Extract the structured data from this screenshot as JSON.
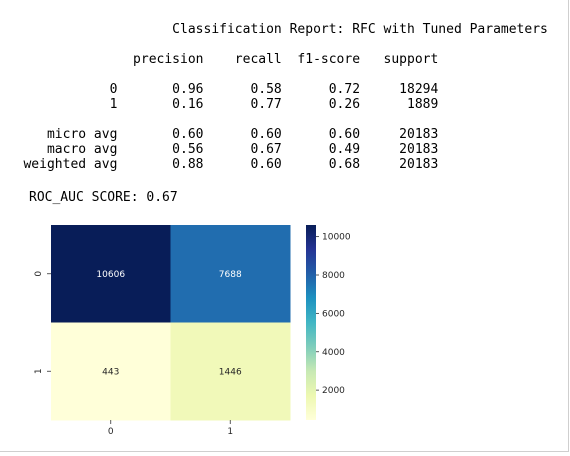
{
  "report": {
    "title": "Classification Report: RFC with Tuned Parameters",
    "header": [
      "precision",
      "recall",
      "f1-score",
      "support"
    ],
    "class_rows": [
      {
        "label": "0",
        "values": [
          "0.96",
          "0.58",
          "0.72",
          "18294"
        ]
      },
      {
        "label": "1",
        "values": [
          "0.16",
          "0.77",
          "0.26",
          "1889"
        ]
      }
    ],
    "avg_rows": [
      {
        "label": "micro avg",
        "values": [
          "0.60",
          "0.60",
          "0.60",
          "20183"
        ]
      },
      {
        "label": "macro avg",
        "values": [
          "0.56",
          "0.67",
          "0.49",
          "20183"
        ]
      },
      {
        "label": "weighted avg",
        "values": [
          "0.88",
          "0.60",
          "0.68",
          "20183"
        ]
      }
    ]
  },
  "roc_auc": {
    "text": "ROC_AUC SCORE: 0.67"
  },
  "chart_data": {
    "type": "heatmap",
    "colormap": "YlGnBu",
    "x_categories": [
      "0",
      "1"
    ],
    "y_categories": [
      "0",
      "1"
    ],
    "values": [
      [
        10606,
        7688
      ],
      [
        443,
        1446
      ]
    ],
    "annotations": [
      [
        "10606",
        "7688"
      ],
      [
        "443",
        "1446"
      ]
    ],
    "colorbar": {
      "min": 443,
      "max": 10606,
      "ticks": [
        2000,
        4000,
        6000,
        8000,
        10000
      ],
      "tick_labels": [
        "2000",
        "4000",
        "6000",
        "8000",
        "10000"
      ]
    },
    "title": "",
    "xlabel": "",
    "ylabel": ""
  }
}
